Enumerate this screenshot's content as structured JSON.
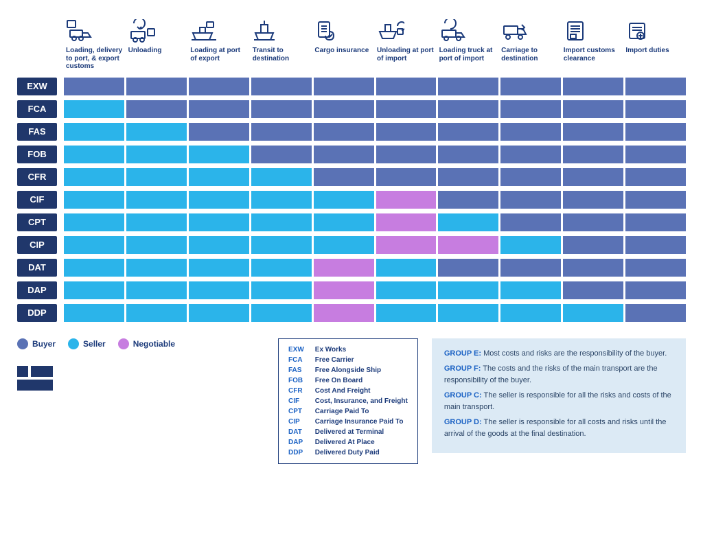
{
  "colors": {
    "buyer": "#5a72b5",
    "seller": "#2bb4ea",
    "negotiable": "#c77de0",
    "term_bg": "#20376b",
    "text": "#1b3a7a",
    "groups_bg": "#dceaf5"
  },
  "legend": [
    {
      "label": "Buyer",
      "color": "#5a72b5"
    },
    {
      "label": "Seller",
      "color": "#2bb4ea"
    },
    {
      "label": "Negotiable",
      "color": "#c77de0"
    }
  ],
  "stages": [
    {
      "label": "Loading, delivery to port, & export customs",
      "icon": "loading"
    },
    {
      "label": "Unloading",
      "icon": "unload"
    },
    {
      "label": "Loading at port of export",
      "icon": "ship-load"
    },
    {
      "label": "Transit to destination",
      "icon": "ship"
    },
    {
      "label": "Cargo insurance",
      "icon": "insurance"
    },
    {
      "label": "Unloading at port of import",
      "icon": "ship-unload"
    },
    {
      "label": "Loading truck at port of import",
      "icon": "truck-load"
    },
    {
      "label": "Carriage to destination",
      "icon": "truck"
    },
    {
      "label": "Import customs clearance",
      "icon": "customs"
    },
    {
      "label": "Import duties",
      "icon": "duties"
    }
  ],
  "terms": [
    {
      "code": "EXW",
      "name": "Ex Works",
      "cells": [
        "buyer",
        "buyer",
        "buyer",
        "buyer",
        "buyer",
        "buyer",
        "buyer",
        "buyer",
        "buyer",
        "buyer"
      ]
    },
    {
      "code": "FCA",
      "name": "Free Carrier",
      "cells": [
        "seller",
        "buyer",
        "buyer",
        "buyer",
        "buyer",
        "buyer",
        "buyer",
        "buyer",
        "buyer",
        "buyer"
      ]
    },
    {
      "code": "FAS",
      "name": "Free Alongside Ship",
      "cells": [
        "seller",
        "seller",
        "buyer",
        "buyer",
        "buyer",
        "buyer",
        "buyer",
        "buyer",
        "buyer",
        "buyer"
      ]
    },
    {
      "code": "FOB",
      "name": "Free On Board",
      "cells": [
        "seller",
        "seller",
        "seller",
        "buyer",
        "buyer",
        "buyer",
        "buyer",
        "buyer",
        "buyer",
        "buyer"
      ]
    },
    {
      "code": "CFR",
      "name": "Cost And Freight",
      "cells": [
        "seller",
        "seller",
        "seller",
        "seller",
        "buyer",
        "buyer",
        "buyer",
        "buyer",
        "buyer",
        "buyer"
      ]
    },
    {
      "code": "CIF",
      "name": "Cost, Insurance, and Freight",
      "cells": [
        "seller",
        "seller",
        "seller",
        "seller",
        "seller",
        "negotiable",
        "buyer",
        "buyer",
        "buyer",
        "buyer"
      ]
    },
    {
      "code": "CPT",
      "name": "Carriage Paid To",
      "cells": [
        "seller",
        "seller",
        "seller",
        "seller",
        "seller",
        "negotiable",
        "seller",
        "buyer",
        "buyer",
        "buyer"
      ]
    },
    {
      "code": "CIP",
      "name": "Carriage Insurance Paid To",
      "cells": [
        "seller",
        "seller",
        "seller",
        "seller",
        "seller",
        "negotiable",
        "negotiable",
        "seller",
        "buyer",
        "buyer"
      ]
    },
    {
      "code": "DAT",
      "name": "Delivered at Terminal",
      "cells": [
        "seller",
        "seller",
        "seller",
        "seller",
        "negotiable",
        "seller",
        "buyer",
        "buyer",
        "buyer",
        "buyer"
      ]
    },
    {
      "code": "DAP",
      "name": "Delivered At Place",
      "cells": [
        "seller",
        "seller",
        "seller",
        "seller",
        "negotiable",
        "seller",
        "seller",
        "seller",
        "buyer",
        "buyer"
      ]
    },
    {
      "code": "DDP",
      "name": "Delivered Duty Paid",
      "cells": [
        "seller",
        "seller",
        "seller",
        "seller",
        "negotiable",
        "seller",
        "seller",
        "seller",
        "seller",
        "buyer"
      ]
    }
  ],
  "groups": [
    {
      "label": "GROUP E:",
      "text": "Most costs and risks are the responsibility of the buyer."
    },
    {
      "label": "GROUP F:",
      "text": "The costs and the risks of the main transport are the responsibility of the buyer."
    },
    {
      "label": "GROUP C:",
      "text": "The seller is responsible for all the risks and costs of the main transport."
    },
    {
      "label": "GROUP D:",
      "text": "The seller is responsible for all costs and risks until the arrival of the goods at the final destination."
    }
  ]
}
